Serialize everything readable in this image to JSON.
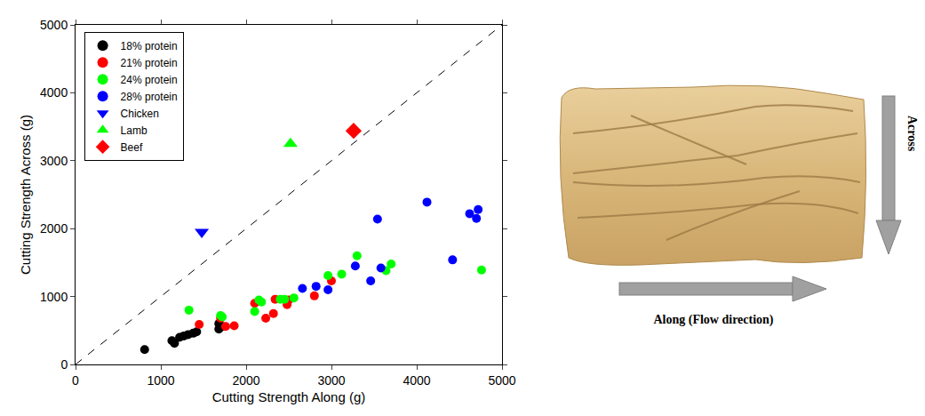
{
  "chart_data": {
    "type": "scatter",
    "x_label": "Cutting Strength Along (g)",
    "y_label": "Cutting Strength Across (g)",
    "xlim": [
      0,
      5000
    ],
    "ylim": [
      0,
      5000
    ],
    "xticks": [
      0,
      1000,
      2000,
      3000,
      4000,
      5000
    ],
    "yticks": [
      0,
      1000,
      2000,
      3000,
      4000,
      5000
    ],
    "grid": false,
    "legend": "upper left",
    "series": [
      {
        "name": "18% protein",
        "color": "#000000",
        "marker": "circle",
        "x": [
          810,
          1130,
          1160,
          1220,
          1270,
          1320,
          1380,
          1420,
          1680,
          1680,
          1720
        ],
        "values": [
          220,
          350,
          310,
          400,
          420,
          440,
          460,
          480,
          520,
          600,
          560
        ]
      },
      {
        "name": "21% protein",
        "color": "#ff0000",
        "marker": "circle",
        "x": [
          1450,
          1700,
          1760,
          1860,
          2100,
          2230,
          2320,
          2340,
          2480,
          2500,
          2800,
          3000
        ],
        "values": [
          590,
          680,
          560,
          570,
          900,
          680,
          750,
          960,
          880,
          950,
          1010,
          1230
        ]
      },
      {
        "name": "24% protein",
        "color": "#00ff00",
        "marker": "circle",
        "x": [
          1330,
          1700,
          1720,
          2100,
          2150,
          2180,
          2400,
          2450,
          2560,
          2960,
          3120,
          3300,
          3640,
          3700,
          4760
        ],
        "values": [
          800,
          720,
          700,
          780,
          950,
          920,
          960,
          960,
          980,
          1310,
          1330,
          1600,
          1380,
          1480,
          1390
        ]
      },
      {
        "name": "28% protein",
        "color": "#0000ff",
        "marker": "circle",
        "x": [
          2660,
          2820,
          2960,
          3280,
          3460,
          3540,
          3580,
          4120,
          4420,
          4620,
          4700,
          4720
        ],
        "values": [
          1120,
          1150,
          1100,
          1450,
          1230,
          2140,
          1420,
          2390,
          1540,
          2220,
          2150,
          2280
        ]
      },
      {
        "name": "Chicken",
        "color": "#0000ff",
        "marker": "triangle-down",
        "x": [
          1480
        ],
        "values": [
          1950
        ]
      },
      {
        "name": "Lamb",
        "color": "#00ff00",
        "marker": "triangle-up",
        "x": [
          2520
        ],
        "values": [
          3250
        ]
      },
      {
        "name": "Beef",
        "color": "#ff0000",
        "marker": "diamond",
        "x": [
          3260
        ],
        "values": [
          3440
        ]
      }
    ],
    "annotations": [
      "Along (Flow direction)",
      "Across"
    ]
  }
}
